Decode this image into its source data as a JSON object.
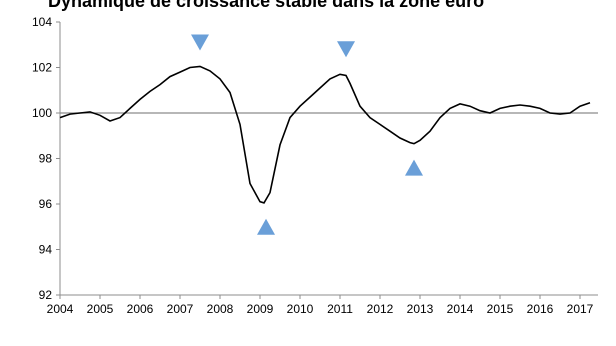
{
  "chart_data": {
    "type": "line",
    "title": "Dynamique de croissance stable dans la zone euro",
    "xlabel": "",
    "ylabel": "",
    "xlim": [
      2004,
      2017.45
    ],
    "ylim": [
      92,
      104
    ],
    "grid": false,
    "baseline": 100,
    "x_tick_labels": [
      "2004",
      "2005",
      "2006",
      "2007",
      "2008",
      "2009",
      "2010",
      "2011",
      "2012",
      "2013",
      "2014",
      "2015",
      "2016",
      "2017"
    ],
    "y_tick_labels": [
      "92",
      "94",
      "96",
      "98",
      "100",
      "102",
      "104"
    ],
    "series": [
      {
        "color": "#000000",
        "x": [
          2004.0,
          2004.25,
          2004.5,
          2004.75,
          2005.0,
          2005.25,
          2005.5,
          2005.75,
          2006.0,
          2006.25,
          2006.5,
          2006.75,
          2007.0,
          2007.25,
          2007.5,
          2007.75,
          2008.0,
          2008.25,
          2008.5,
          2008.75,
          2009.0,
          2009.1,
          2009.25,
          2009.5,
          2009.75,
          2010.0,
          2010.25,
          2010.5,
          2010.75,
          2011.0,
          2011.15,
          2011.25,
          2011.5,
          2011.75,
          2012.0,
          2012.25,
          2012.5,
          2012.75,
          2012.85,
          2013.0,
          2013.25,
          2013.5,
          2013.75,
          2014.0,
          2014.25,
          2014.5,
          2014.75,
          2015.0,
          2015.25,
          2015.5,
          2015.75,
          2016.0,
          2016.25,
          2016.5,
          2016.75,
          2017.0,
          2017.25
        ],
        "values": [
          99.8,
          99.95,
          100.0,
          100.05,
          99.9,
          99.65,
          99.8,
          100.2,
          100.6,
          100.95,
          101.25,
          101.6,
          101.8,
          102.0,
          102.05,
          101.85,
          101.5,
          100.9,
          99.5,
          96.9,
          96.1,
          96.05,
          96.5,
          98.6,
          99.8,
          100.3,
          100.7,
          101.1,
          101.5,
          101.7,
          101.65,
          101.3,
          100.3,
          99.8,
          99.5,
          99.2,
          98.9,
          98.7,
          98.65,
          98.8,
          99.2,
          99.8,
          100.2,
          100.4,
          100.3,
          100.1,
          100.0,
          100.2,
          100.3,
          100.35,
          100.3,
          100.2,
          100.0,
          99.95,
          100.0,
          100.3,
          100.45
        ]
      }
    ],
    "markers": [
      {
        "shape": "triangle-down",
        "x": 2007.5,
        "y": 103.1,
        "color": "#6a9fd8"
      },
      {
        "shape": "triangle-down",
        "x": 2011.15,
        "y": 102.8,
        "color": "#6a9fd8"
      },
      {
        "shape": "triangle-up",
        "x": 2009.15,
        "y": 95.0,
        "color": "#6a9fd8"
      },
      {
        "shape": "triangle-up",
        "x": 2012.85,
        "y": 97.6,
        "color": "#6a9fd8"
      }
    ]
  }
}
